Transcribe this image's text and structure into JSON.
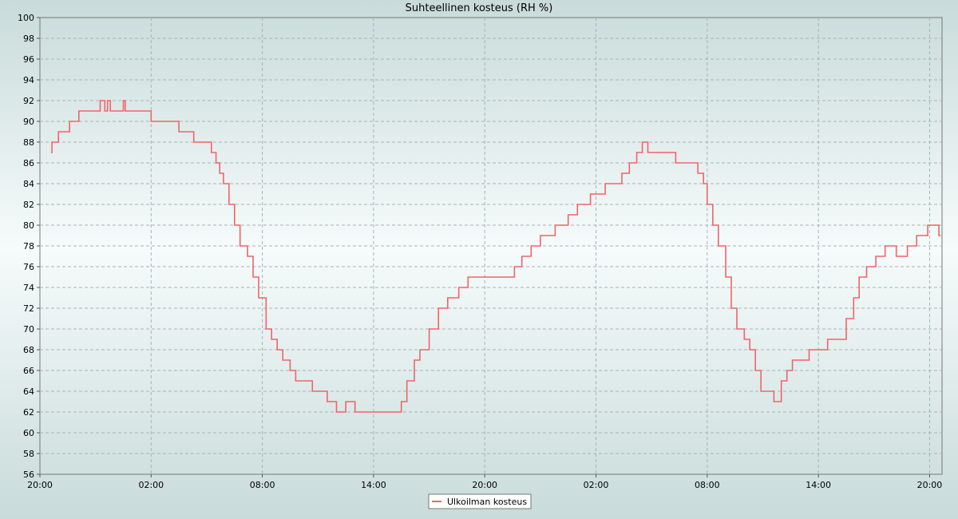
{
  "chart_data": {
    "type": "line",
    "title": "Suhteellinen kosteus (RH %)",
    "xlabel": "",
    "ylabel": "",
    "ylim": [
      56,
      100
    ],
    "yticks": [
      56,
      58,
      60,
      62,
      64,
      66,
      68,
      70,
      72,
      74,
      76,
      78,
      80,
      82,
      84,
      86,
      88,
      90,
      92,
      94,
      96,
      98,
      100
    ],
    "xlim": [
      0,
      48.67
    ],
    "xticks": [
      {
        "x": 0,
        "label": "20:00"
      },
      {
        "x": 6,
        "label": "02:00"
      },
      {
        "x": 12,
        "label": "08:00"
      },
      {
        "x": 18,
        "label": "14:00"
      },
      {
        "x": 24,
        "label": "20:00"
      },
      {
        "x": 30,
        "label": "02:00"
      },
      {
        "x": 36,
        "label": "08:00"
      },
      {
        "x": 42,
        "label": "14:00"
      },
      {
        "x": 48,
        "label": "20:00"
      }
    ],
    "grid": true,
    "legend_position": "bottom-center",
    "series": [
      {
        "name": "Ulkoilman kosteus",
        "color": "#f0646a",
        "points": [
          [
            0.6,
            87
          ],
          [
            0.65,
            88
          ],
          [
            1.0,
            89
          ],
          [
            1.3,
            89
          ],
          [
            1.6,
            90
          ],
          [
            2.1,
            91
          ],
          [
            3.0,
            91
          ],
          [
            3.25,
            92
          ],
          [
            3.5,
            91
          ],
          [
            3.65,
            92
          ],
          [
            3.8,
            91
          ],
          [
            4.5,
            92
          ],
          [
            4.6,
            91
          ],
          [
            5.5,
            91
          ],
          [
            6.0,
            90
          ],
          [
            7.0,
            90
          ],
          [
            7.5,
            89
          ],
          [
            8.0,
            89
          ],
          [
            8.3,
            88
          ],
          [
            9.0,
            88
          ],
          [
            9.25,
            87
          ],
          [
            9.5,
            86
          ],
          [
            9.7,
            85
          ],
          [
            9.9,
            84
          ],
          [
            10.2,
            82
          ],
          [
            10.5,
            80
          ],
          [
            10.8,
            78
          ],
          [
            11.2,
            77
          ],
          [
            11.5,
            75
          ],
          [
            11.8,
            73
          ],
          [
            12.2,
            70
          ],
          [
            12.5,
            69
          ],
          [
            12.8,
            68
          ],
          [
            13.1,
            67
          ],
          [
            13.5,
            66
          ],
          [
            13.8,
            65
          ],
          [
            14.2,
            65
          ],
          [
            14.7,
            64
          ],
          [
            15.1,
            64
          ],
          [
            15.5,
            63
          ],
          [
            16.0,
            62
          ],
          [
            16.5,
            63
          ],
          [
            17.0,
            62
          ],
          [
            17.5,
            62
          ],
          [
            18.0,
            62
          ],
          [
            18.5,
            62
          ],
          [
            19.1,
            62
          ],
          [
            19.5,
            63
          ],
          [
            19.8,
            65
          ],
          [
            20.2,
            67
          ],
          [
            20.5,
            68
          ],
          [
            21.0,
            70
          ],
          [
            21.5,
            72
          ],
          [
            22.0,
            73
          ],
          [
            22.6,
            74
          ],
          [
            23.1,
            75
          ],
          [
            24.0,
            75
          ],
          [
            25.0,
            75
          ],
          [
            25.6,
            76
          ],
          [
            26.0,
            77
          ],
          [
            26.5,
            78
          ],
          [
            27.0,
            79
          ],
          [
            27.8,
            80
          ],
          [
            28.5,
            81
          ],
          [
            29.0,
            82
          ],
          [
            29.7,
            83
          ],
          [
            30.5,
            84
          ],
          [
            31.0,
            84
          ],
          [
            31.4,
            85
          ],
          [
            31.8,
            86
          ],
          [
            32.2,
            87
          ],
          [
            32.5,
            88
          ],
          [
            32.8,
            87
          ],
          [
            34.0,
            87
          ],
          [
            34.3,
            86
          ],
          [
            35.2,
            86
          ],
          [
            35.5,
            85
          ],
          [
            35.8,
            84
          ],
          [
            36.0,
            82
          ],
          [
            36.3,
            80
          ],
          [
            36.6,
            78
          ],
          [
            37.0,
            75
          ],
          [
            37.3,
            72
          ],
          [
            37.6,
            70
          ],
          [
            38.0,
            69
          ],
          [
            38.3,
            68
          ],
          [
            38.6,
            66
          ],
          [
            38.9,
            64
          ],
          [
            39.3,
            64
          ],
          [
            39.6,
            63
          ],
          [
            40.0,
            65
          ],
          [
            40.3,
            66
          ],
          [
            40.6,
            67
          ],
          [
            41.0,
            67
          ],
          [
            41.5,
            68
          ],
          [
            42.0,
            68
          ],
          [
            42.5,
            69
          ],
          [
            43.0,
            69
          ],
          [
            43.5,
            71
          ],
          [
            43.9,
            73
          ],
          [
            44.2,
            75
          ],
          [
            44.6,
            76
          ],
          [
            45.1,
            77
          ],
          [
            45.6,
            78
          ],
          [
            46.2,
            77
          ],
          [
            46.8,
            78
          ],
          [
            47.3,
            79
          ],
          [
            47.9,
            80
          ],
          [
            48.4,
            80
          ],
          [
            48.5,
            79
          ],
          [
            48.6,
            79
          ]
        ]
      }
    ]
  }
}
